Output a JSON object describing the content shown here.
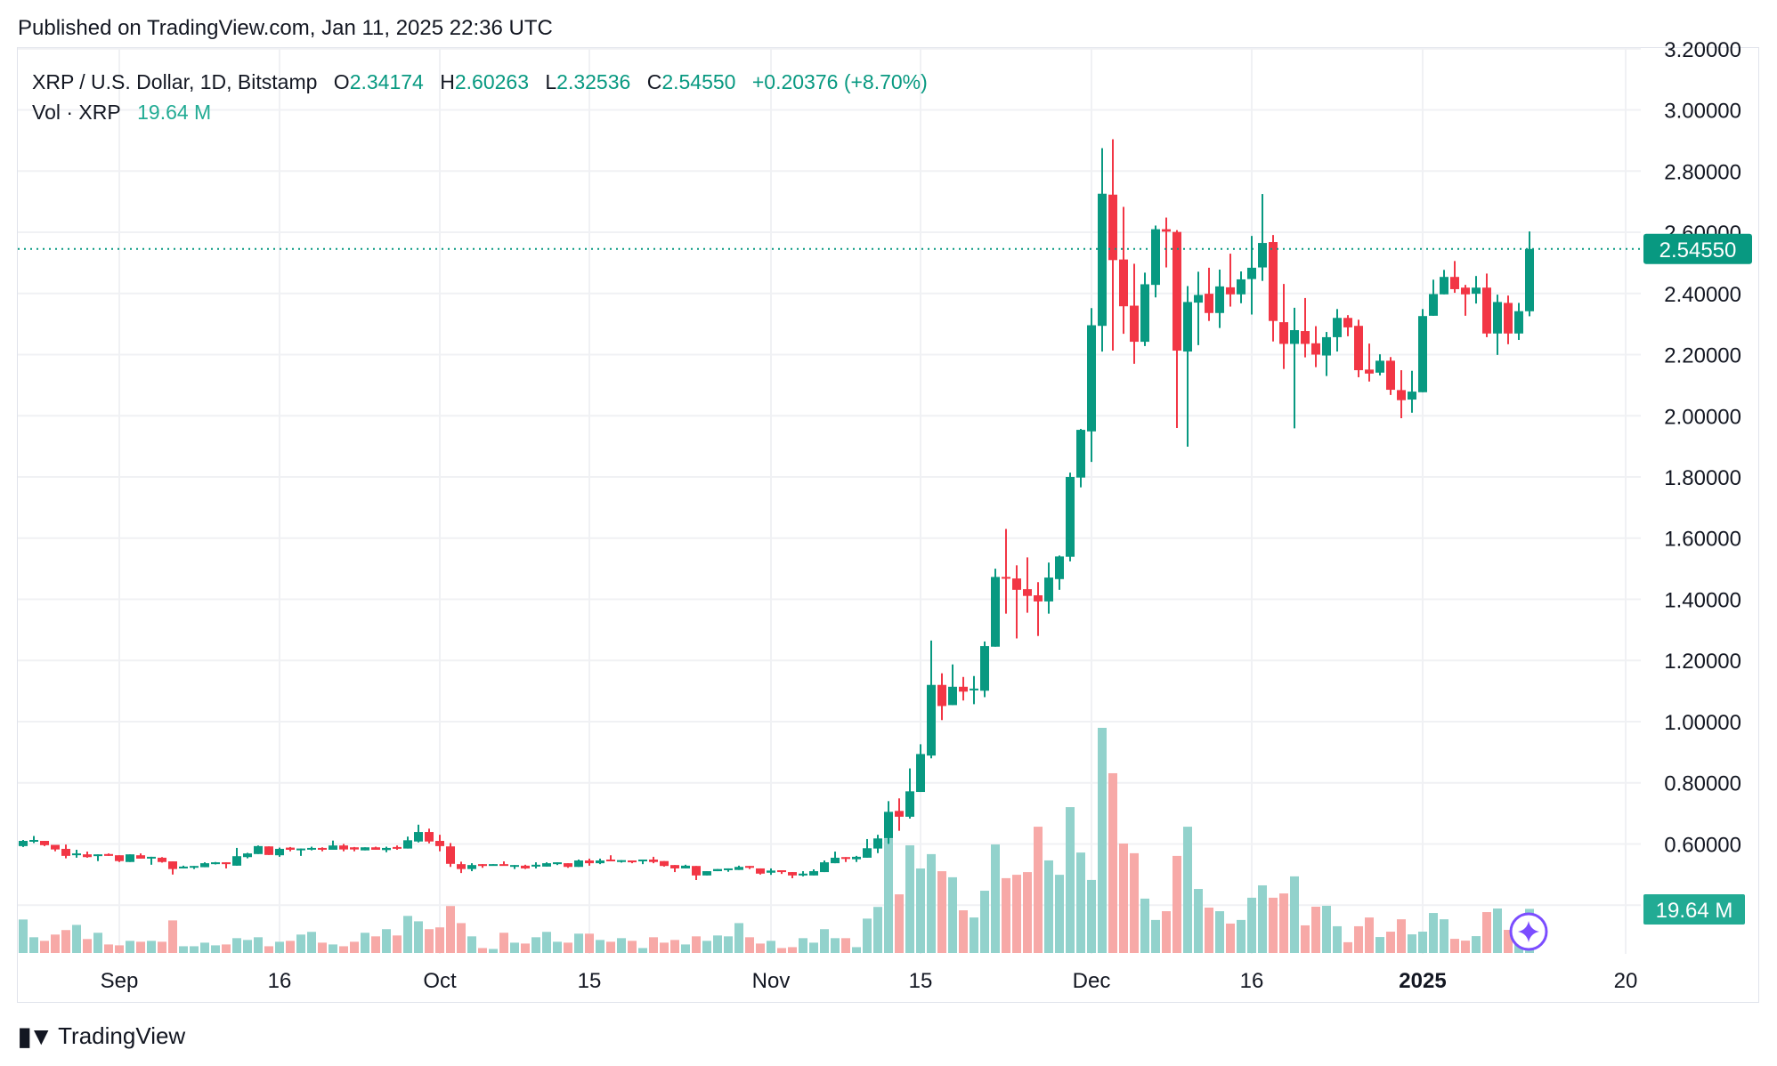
{
  "published": "Published on TradingView.com, Jan 11, 2025 22:36 UTC",
  "legend": {
    "symbol": "XRP / U.S. Dollar, 1D, Bitstamp",
    "o_label": "O",
    "o": "2.34174",
    "h_label": "H",
    "h": "2.60263",
    "l_label": "L",
    "l": "2.32536",
    "c_label": "C",
    "c": "2.54550",
    "change": "+0.20376 (+8.70%)",
    "vol_label": "Vol · XRP",
    "vol": "19.64 M"
  },
  "colors": {
    "up": "#089981",
    "down": "#F23645",
    "vol_up": "#92D2CC",
    "vol_down": "#F7A9A7",
    "grid": "#f0f1f4",
    "ai_icon": "#7B4DFF"
  },
  "footer": {
    "logo_text": "TradingView"
  },
  "chart_data": {
    "type": "candlestick",
    "title": "",
    "ylim": [
      0.4,
      3.2
    ],
    "grid": true,
    "price_ticks": [
      "3.20000",
      "3.00000",
      "2.80000",
      "2.60000",
      "2.40000",
      "2.20000",
      "2.00000",
      "1.80000",
      "1.60000",
      "1.40000",
      "1.20000",
      "1.00000",
      "0.80000",
      "0.60000"
    ],
    "date_ticks": [
      {
        "label": "Sep",
        "date": "2024-09-01",
        "bold": false
      },
      {
        "label": "16",
        "date": "2024-09-16",
        "bold": false
      },
      {
        "label": "Oct",
        "date": "2024-10-01",
        "bold": false
      },
      {
        "label": "15",
        "date": "2024-10-15",
        "bold": false
      },
      {
        "label": "Nov",
        "date": "2024-11-01",
        "bold": false
      },
      {
        "label": "15",
        "date": "2024-11-15",
        "bold": false
      },
      {
        "label": "Dec",
        "date": "2024-12-01",
        "bold": false
      },
      {
        "label": "16",
        "date": "2024-12-16",
        "bold": false
      },
      {
        "label": "2025",
        "date": "2025-01-01",
        "bold": true
      },
      {
        "label": "20",
        "date": "2025-01-20",
        "bold": false
      }
    ],
    "last_price_label": "2.54550",
    "last_price": 2.5455,
    "last_volume_label": "19.64 M",
    "columns": [
      "date",
      "open",
      "high",
      "low",
      "close",
      "volume_M"
    ],
    "candles": [
      [
        "2024-08-23",
        0.593,
        0.613,
        0.59,
        0.61,
        14.9
      ],
      [
        "2024-08-24",
        0.609,
        0.626,
        0.603,
        0.613,
        7.0
      ],
      [
        "2024-08-25",
        0.61,
        0.61,
        0.593,
        0.596,
        5.4
      ],
      [
        "2024-08-26",
        0.597,
        0.597,
        0.576,
        0.582,
        8.2
      ],
      [
        "2024-08-27",
        0.584,
        0.598,
        0.553,
        0.561,
        10.2
      ],
      [
        "2024-08-28",
        0.564,
        0.581,
        0.555,
        0.569,
        12.5
      ],
      [
        "2024-08-29",
        0.566,
        0.575,
        0.555,
        0.557,
        6.2
      ],
      [
        "2024-08-30",
        0.561,
        0.566,
        0.544,
        0.566,
        9.0
      ],
      [
        "2024-08-31",
        0.567,
        0.569,
        0.561,
        0.561,
        3.8
      ],
      [
        "2024-09-01",
        0.563,
        0.563,
        0.541,
        0.544,
        3.4
      ],
      [
        "2024-09-02",
        0.541,
        0.566,
        0.541,
        0.566,
        5.4
      ],
      [
        "2024-09-03",
        0.563,
        0.569,
        0.552,
        0.552,
        5.0
      ],
      [
        "2024-09-04",
        0.555,
        0.558,
        0.532,
        0.558,
        5.4
      ],
      [
        "2024-09-05",
        0.555,
        0.557,
        0.539,
        0.541,
        5.0
      ],
      [
        "2024-09-06",
        0.543,
        0.543,
        0.5,
        0.518,
        14.5
      ],
      [
        "2024-09-07",
        0.52,
        0.529,
        0.52,
        0.526,
        3.0
      ],
      [
        "2024-09-08",
        0.524,
        0.528,
        0.518,
        0.528,
        3.0
      ],
      [
        "2024-09-09",
        0.524,
        0.54,
        0.524,
        0.537,
        4.6
      ],
      [
        "2024-09-10",
        0.534,
        0.541,
        0.533,
        0.54,
        3.4
      ],
      [
        "2024-09-11",
        0.54,
        0.54,
        0.52,
        0.534,
        3.8
      ],
      [
        "2024-09-12",
        0.529,
        0.587,
        0.529,
        0.56,
        6.6
      ],
      [
        "2024-09-13",
        0.557,
        0.571,
        0.553,
        0.569,
        5.8
      ],
      [
        "2024-09-14",
        0.567,
        0.595,
        0.567,
        0.593,
        7.0
      ],
      [
        "2024-09-15",
        0.592,
        0.592,
        0.564,
        0.564,
        3.0
      ],
      [
        "2024-09-16",
        0.563,
        0.588,
        0.558,
        0.584,
        5.0
      ],
      [
        "2024-09-17",
        0.588,
        0.59,
        0.576,
        0.581,
        5.4
      ],
      [
        "2024-09-18",
        0.581,
        0.585,
        0.561,
        0.585,
        8.2
      ],
      [
        "2024-09-19",
        0.582,
        0.591,
        0.579,
        0.587,
        9.4
      ],
      [
        "2024-09-20",
        0.587,
        0.589,
        0.576,
        0.581,
        4.6
      ],
      [
        "2024-09-21",
        0.581,
        0.611,
        0.581,
        0.595,
        3.8
      ],
      [
        "2024-09-22",
        0.595,
        0.6,
        0.576,
        0.582,
        3.0
      ],
      [
        "2024-09-23",
        0.589,
        0.59,
        0.576,
        0.582,
        5.0
      ],
      [
        "2024-09-24",
        0.579,
        0.589,
        0.579,
        0.589,
        9.0
      ],
      [
        "2024-09-25",
        0.589,
        0.591,
        0.581,
        0.581,
        7.4
      ],
      [
        "2024-09-26",
        0.58,
        0.591,
        0.573,
        0.587,
        10.6
      ],
      [
        "2024-09-27",
        0.59,
        0.595,
        0.581,
        0.585,
        7.8
      ],
      [
        "2024-09-28",
        0.585,
        0.624,
        0.585,
        0.612,
        16.5
      ],
      [
        "2024-09-29",
        0.608,
        0.663,
        0.605,
        0.639,
        14.1
      ],
      [
        "2024-09-30",
        0.639,
        0.65,
        0.602,
        0.608,
        10.6
      ],
      [
        "2024-10-01",
        0.61,
        0.63,
        0.576,
        0.593,
        11.4
      ],
      [
        "2024-10-02",
        0.592,
        0.603,
        0.525,
        0.535,
        20.9
      ],
      [
        "2024-10-03",
        0.534,
        0.542,
        0.505,
        0.518,
        13.3
      ],
      [
        "2024-10-04",
        0.518,
        0.537,
        0.511,
        0.531,
        7.4
      ],
      [
        "2024-10-05",
        0.534,
        0.534,
        0.522,
        0.528,
        2.2
      ],
      [
        "2024-10-06",
        0.529,
        0.534,
        0.529,
        0.534,
        1.8
      ],
      [
        "2024-10-07",
        0.534,
        0.543,
        0.529,
        0.529,
        9.0
      ],
      [
        "2024-10-08",
        0.526,
        0.531,
        0.518,
        0.531,
        4.6
      ],
      [
        "2024-10-09",
        0.529,
        0.532,
        0.518,
        0.52,
        4.2
      ],
      [
        "2024-10-10",
        0.526,
        0.54,
        0.52,
        0.532,
        7.0
      ],
      [
        "2024-10-11",
        0.526,
        0.54,
        0.526,
        0.537,
        9.4
      ],
      [
        "2024-10-12",
        0.534,
        0.54,
        0.531,
        0.54,
        5.0
      ],
      [
        "2024-10-13",
        0.537,
        0.537,
        0.522,
        0.525,
        4.6
      ],
      [
        "2024-10-14",
        0.525,
        0.549,
        0.525,
        0.546,
        8.6
      ],
      [
        "2024-10-15",
        0.546,
        0.552,
        0.529,
        0.537,
        8.6
      ],
      [
        "2024-10-16",
        0.537,
        0.552,
        0.534,
        0.546,
        5.8
      ],
      [
        "2024-10-17",
        0.549,
        0.563,
        0.544,
        0.544,
        5.0
      ],
      [
        "2024-10-18",
        0.541,
        0.547,
        0.539,
        0.547,
        6.6
      ],
      [
        "2024-10-19",
        0.546,
        0.546,
        0.537,
        0.54,
        5.4
      ],
      [
        "2024-10-20",
        0.544,
        0.549,
        0.534,
        0.549,
        2.2
      ],
      [
        "2024-10-21",
        0.549,
        0.558,
        0.537,
        0.541,
        7.0
      ],
      [
        "2024-10-22",
        0.544,
        0.544,
        0.526,
        0.528,
        4.6
      ],
      [
        "2024-10-23",
        0.531,
        0.531,
        0.508,
        0.52,
        5.8
      ],
      [
        "2024-10-24",
        0.52,
        0.532,
        0.52,
        0.529,
        3.8
      ],
      [
        "2024-10-25",
        0.528,
        0.528,
        0.482,
        0.497,
        7.4
      ],
      [
        "2024-10-26",
        0.497,
        0.511,
        0.497,
        0.511,
        5.4
      ],
      [
        "2024-10-27",
        0.511,
        0.518,
        0.511,
        0.518,
        7.8
      ],
      [
        "2024-10-28",
        0.515,
        0.52,
        0.509,
        0.52,
        7.4
      ],
      [
        "2024-10-29",
        0.515,
        0.529,
        0.515,
        0.525,
        13.3
      ],
      [
        "2024-10-30",
        0.528,
        0.528,
        0.518,
        0.522,
        7.0
      ],
      [
        "2024-10-31",
        0.52,
        0.52,
        0.5,
        0.503,
        4.2
      ],
      [
        "2024-11-01",
        0.506,
        0.52,
        0.499,
        0.513,
        5.4
      ],
      [
        "2024-11-02",
        0.514,
        0.514,
        0.502,
        0.508,
        2.2
      ],
      [
        "2024-11-03",
        0.508,
        0.508,
        0.488,
        0.497,
        2.6
      ],
      [
        "2024-11-04",
        0.497,
        0.511,
        0.494,
        0.503,
        6.6
      ],
      [
        "2024-11-05",
        0.497,
        0.517,
        0.497,
        0.511,
        4.6
      ],
      [
        "2024-11-06",
        0.508,
        0.546,
        0.508,
        0.54,
        10.6
      ],
      [
        "2024-11-07",
        0.537,
        0.575,
        0.537,
        0.555,
        6.6
      ],
      [
        "2024-11-08",
        0.557,
        0.557,
        0.541,
        0.551,
        6.6
      ],
      [
        "2024-11-09",
        0.55,
        0.561,
        0.541,
        0.558,
        2.6
      ],
      [
        "2024-11-10",
        0.555,
        0.616,
        0.555,
        0.586,
        15.3
      ],
      [
        "2024-11-11",
        0.585,
        0.63,
        0.57,
        0.618,
        20.5
      ],
      [
        "2024-11-12",
        0.619,
        0.74,
        0.6,
        0.705,
        51.0
      ],
      [
        "2024-11-13",
        0.708,
        0.749,
        0.643,
        0.689,
        26.1
      ],
      [
        "2024-11-14",
        0.689,
        0.847,
        0.683,
        0.772,
        47.9
      ],
      [
        "2024-11-15",
        0.77,
        0.926,
        0.77,
        0.894,
        37.6
      ],
      [
        "2024-11-16",
        0.889,
        1.265,
        0.88,
        1.12,
        44.0
      ],
      [
        "2024-11-17",
        1.12,
        1.158,
        1.005,
        1.051,
        36.4
      ],
      [
        "2024-11-18",
        1.054,
        1.187,
        1.054,
        1.114,
        33.7
      ],
      [
        "2024-11-19",
        1.114,
        1.146,
        1.069,
        1.098,
        19.0
      ],
      [
        "2024-11-20",
        1.103,
        1.149,
        1.057,
        1.108,
        15.8
      ],
      [
        "2024-11-21",
        1.101,
        1.262,
        1.08,
        1.247,
        27.7
      ],
      [
        "2024-11-22",
        1.245,
        1.5,
        1.245,
        1.473,
        48.3
      ],
      [
        "2024-11-23",
        1.473,
        1.63,
        1.353,
        1.468,
        33.3
      ],
      [
        "2024-11-24",
        1.468,
        1.511,
        1.272,
        1.431,
        34.8
      ],
      [
        "2024-11-25",
        1.433,
        1.537,
        1.356,
        1.411,
        36.0
      ],
      [
        "2024-11-26",
        1.413,
        1.456,
        1.28,
        1.393,
        56.2
      ],
      [
        "2024-11-27",
        1.393,
        1.52,
        1.353,
        1.471,
        41.2
      ],
      [
        "2024-11-28",
        1.466,
        1.543,
        1.431,
        1.54,
        34.8
      ],
      [
        "2024-11-29",
        1.539,
        1.814,
        1.524,
        1.8,
        64.9
      ],
      [
        "2024-11-30",
        1.798,
        1.957,
        1.766,
        1.954,
        44.7
      ],
      [
        "2024-12-01",
        1.949,
        2.352,
        1.849,
        2.296,
        32.5
      ],
      [
        "2024-12-02",
        2.294,
        2.875,
        2.21,
        2.726,
        100.2
      ],
      [
        "2024-12-03",
        2.723,
        2.904,
        2.213,
        2.509,
        80.0
      ],
      [
        "2024-12-04",
        2.511,
        2.683,
        2.268,
        2.358,
        48.7
      ],
      [
        "2024-12-05",
        2.36,
        2.497,
        2.17,
        2.242,
        44.4
      ],
      [
        "2024-12-06",
        2.242,
        2.468,
        2.228,
        2.43,
        24.2
      ],
      [
        "2024-12-07",
        2.428,
        2.622,
        2.387,
        2.61,
        14.7
      ],
      [
        "2024-12-08",
        2.61,
        2.648,
        2.485,
        2.602,
        18.6
      ],
      [
        "2024-12-09",
        2.601,
        2.607,
        1.96,
        2.213,
        43.2
      ],
      [
        "2024-12-10",
        2.21,
        2.424,
        1.899,
        2.372,
        56.2
      ],
      [
        "2024-12-11",
        2.37,
        2.471,
        2.231,
        2.395,
        28.5
      ],
      [
        "2024-12-12",
        2.399,
        2.484,
        2.31,
        2.336,
        20.2
      ],
      [
        "2024-12-13",
        2.336,
        2.478,
        2.287,
        2.423,
        18.6
      ],
      [
        "2024-12-14",
        2.42,
        2.53,
        2.357,
        2.397,
        13.1
      ],
      [
        "2024-12-15",
        2.397,
        2.472,
        2.368,
        2.446,
        14.7
      ],
      [
        "2024-12-16",
        2.447,
        2.588,
        2.331,
        2.484,
        24.6
      ],
      [
        "2024-12-17",
        2.485,
        2.725,
        2.441,
        2.565,
        30.1
      ],
      [
        "2024-12-18",
        2.568,
        2.591,
        2.243,
        2.31,
        24.6
      ],
      [
        "2024-12-19",
        2.306,
        2.431,
        2.153,
        2.235,
        26.5
      ],
      [
        "2024-12-20",
        2.235,
        2.353,
        1.959,
        2.28,
        34.1
      ],
      [
        "2024-12-21",
        2.277,
        2.385,
        2.191,
        2.235,
        12.3
      ],
      [
        "2024-12-22",
        2.237,
        2.293,
        2.159,
        2.2,
        20.6
      ],
      [
        "2024-12-23",
        2.197,
        2.274,
        2.13,
        2.257,
        21.0
      ],
      [
        "2024-12-24",
        2.257,
        2.349,
        2.21,
        2.32,
        11.9
      ],
      [
        "2024-12-25",
        2.32,
        2.329,
        2.26,
        2.289,
        4.8
      ],
      [
        "2024-12-26",
        2.294,
        2.314,
        2.126,
        2.149,
        11.9
      ],
      [
        "2024-12-27",
        2.151,
        2.236,
        2.112,
        2.138,
        15.8
      ],
      [
        "2024-12-28",
        2.141,
        2.201,
        2.132,
        2.18,
        7.1
      ],
      [
        "2024-12-29",
        2.18,
        2.192,
        2.068,
        2.085,
        9.5
      ],
      [
        "2024-12-30",
        2.084,
        2.149,
        1.992,
        2.051,
        15.0
      ],
      [
        "2024-12-31",
        2.053,
        2.147,
        2.01,
        2.079,
        8.3
      ],
      [
        "2025-01-01",
        2.077,
        2.349,
        2.077,
        2.326,
        9.5
      ],
      [
        "2025-01-02",
        2.327,
        2.445,
        2.327,
        2.398,
        17.8
      ],
      [
        "2025-01-03",
        2.397,
        2.477,
        2.397,
        2.454,
        15.0
      ],
      [
        "2025-01-04",
        2.454,
        2.506,
        2.402,
        2.414,
        6.3
      ],
      [
        "2025-01-05",
        2.419,
        2.428,
        2.327,
        2.397,
        5.5
      ],
      [
        "2025-01-06",
        2.399,
        2.457,
        2.367,
        2.419,
        7.5
      ],
      [
        "2025-01-07",
        2.419,
        2.465,
        2.257,
        2.269,
        18.2
      ],
      [
        "2025-01-08",
        2.269,
        2.396,
        2.199,
        2.372,
        19.8
      ],
      [
        "2025-01-09",
        2.369,
        2.393,
        2.234,
        2.269,
        10.3
      ],
      [
        "2025-01-10",
        2.269,
        2.369,
        2.248,
        2.342,
        8.0
      ],
      [
        "2025-01-11",
        2.34174,
        2.60263,
        2.32536,
        2.5455,
        19.64
      ]
    ]
  }
}
